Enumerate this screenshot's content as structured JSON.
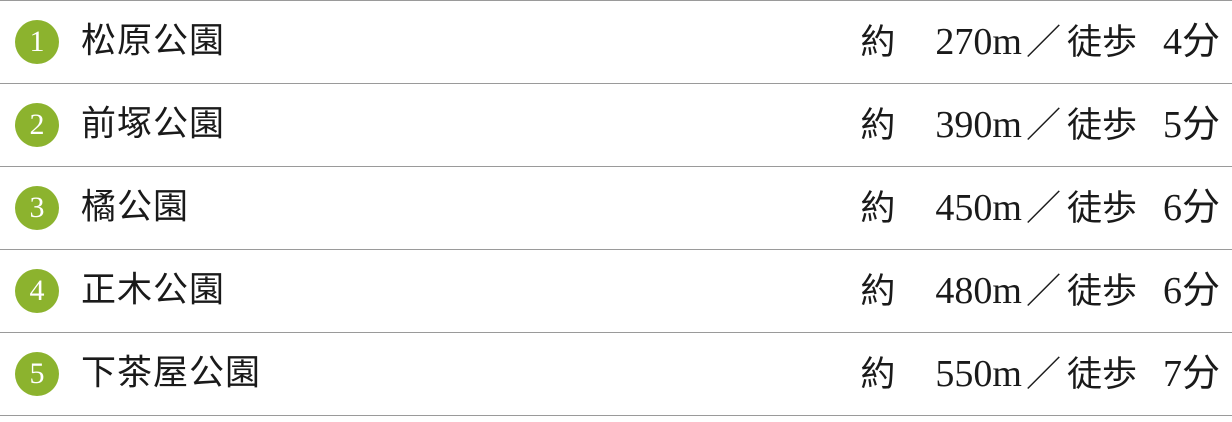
{
  "accent_color": "#8cb32e",
  "walk_label": "徒歩",
  "approx_label": "約",
  "separator": "／",
  "parks": [
    {
      "number": "1",
      "name": "松原公園",
      "distance": "270m",
      "minutes": "4分"
    },
    {
      "number": "2",
      "name": "前塚公園",
      "distance": "390m",
      "minutes": "5分"
    },
    {
      "number": "3",
      "name": "橘公園",
      "distance": "450m",
      "minutes": "6分"
    },
    {
      "number": "4",
      "name": "正木公園",
      "distance": "480m",
      "minutes": "6分"
    },
    {
      "number": "5",
      "name": "下茶屋公園",
      "distance": "550m",
      "minutes": "7分"
    }
  ]
}
